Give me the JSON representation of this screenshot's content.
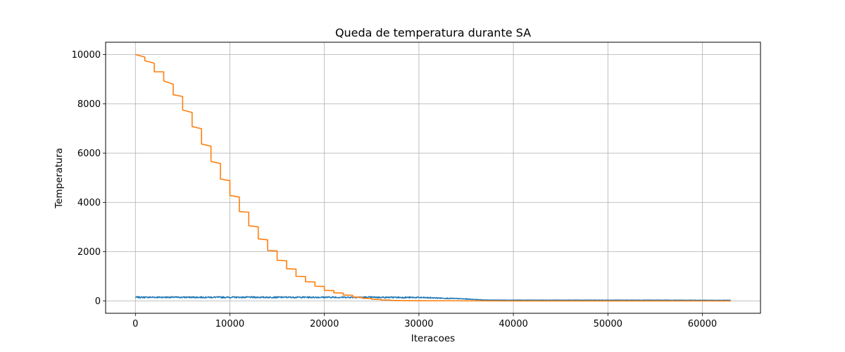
{
  "chart_data": {
    "type": "line",
    "title": "Queda de temperatura durante SA",
    "xlabel": "Iteracoes",
    "ylabel": "Temperatura",
    "xlim": [
      -3150,
      66150
    ],
    "ylim": [
      -500,
      10500
    ],
    "xticks": [
      0,
      10000,
      20000,
      30000,
      40000,
      50000,
      60000
    ],
    "yticks": [
      0,
      2000,
      4000,
      6000,
      8000,
      10000
    ],
    "grid": true,
    "colors": {
      "series_0": "#1f77b4",
      "series_1": "#ff7f0e",
      "grid": "#b0b0b0"
    },
    "series": [
      {
        "color": "#1f77b4",
        "noise": 30,
        "x": [
          0,
          5000,
          10000,
          15000,
          20000,
          25000,
          30000,
          32000,
          34000,
          35000,
          36000,
          37000,
          40000,
          50000,
          56000,
          60000,
          63000
        ],
        "y": [
          150,
          150,
          150,
          150,
          150,
          150,
          140,
          120,
          95,
          80,
          60,
          40,
          35,
          35,
          35,
          30,
          30
        ]
      },
      {
        "color": "#ff7f0e",
        "x": [
          0,
          1000,
          1000,
          2000,
          2000,
          3000,
          3000,
          4000,
          4000,
          5000,
          5000,
          6000,
          6000,
          7000,
          7000,
          8000,
          8000,
          9000,
          9000,
          10000,
          10000,
          11000,
          11000,
          12000,
          12000,
          13000,
          13000,
          14000,
          14000,
          15000,
          15000,
          16000,
          16000,
          17000,
          17000,
          18000,
          18000,
          19000,
          19000,
          20000,
          20000,
          21000,
          21000,
          22000,
          22000,
          23000,
          23000,
          24000,
          24000,
          25000,
          25000,
          26000,
          26000,
          27000,
          27000,
          28000,
          28000,
          30000,
          40000,
          63000
        ],
        "y": [
          10000,
          9900,
          9750,
          9650,
          9300,
          9300,
          8930,
          8800,
          8370,
          8300,
          7750,
          7650,
          7080,
          6990,
          6370,
          6280,
          5660,
          5580,
          4950,
          4880,
          4280,
          4220,
          3630,
          3600,
          3050,
          3010,
          2520,
          2480,
          2050,
          2030,
          1650,
          1630,
          1310,
          1290,
          1000,
          990,
          780,
          770,
          600,
          590,
          430,
          420,
          330,
          320,
          240,
          230,
          160,
          150,
          110,
          100,
          70,
          60,
          40,
          35,
          25,
          20,
          15,
          10,
          0,
          0
        ]
      }
    ]
  }
}
